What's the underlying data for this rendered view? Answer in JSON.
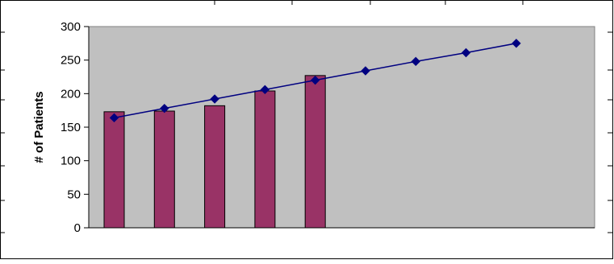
{
  "chart_data": {
    "type": "bar",
    "categories": [
      "",
      "",
      "",
      "",
      "",
      "",
      "",
      "",
      ""
    ],
    "ylabel": "# of Patients",
    "ylim": [
      0,
      300
    ],
    "yticks": [
      0,
      50,
      100,
      150,
      200,
      250,
      300
    ],
    "grid": false,
    "series": [
      {
        "type": "bar",
        "values": [
          173,
          174,
          182,
          204,
          227,
          null,
          null,
          null,
          null
        ]
      },
      {
        "type": "line",
        "values": [
          164,
          178,
          192,
          206,
          220,
          234,
          248,
          261,
          275
        ]
      }
    ]
  },
  "colors": {
    "plot_background": "#C0C0C0",
    "bar_fill": "#993366",
    "line": "#000080",
    "marker": "#000080",
    "frame": "#000000"
  }
}
